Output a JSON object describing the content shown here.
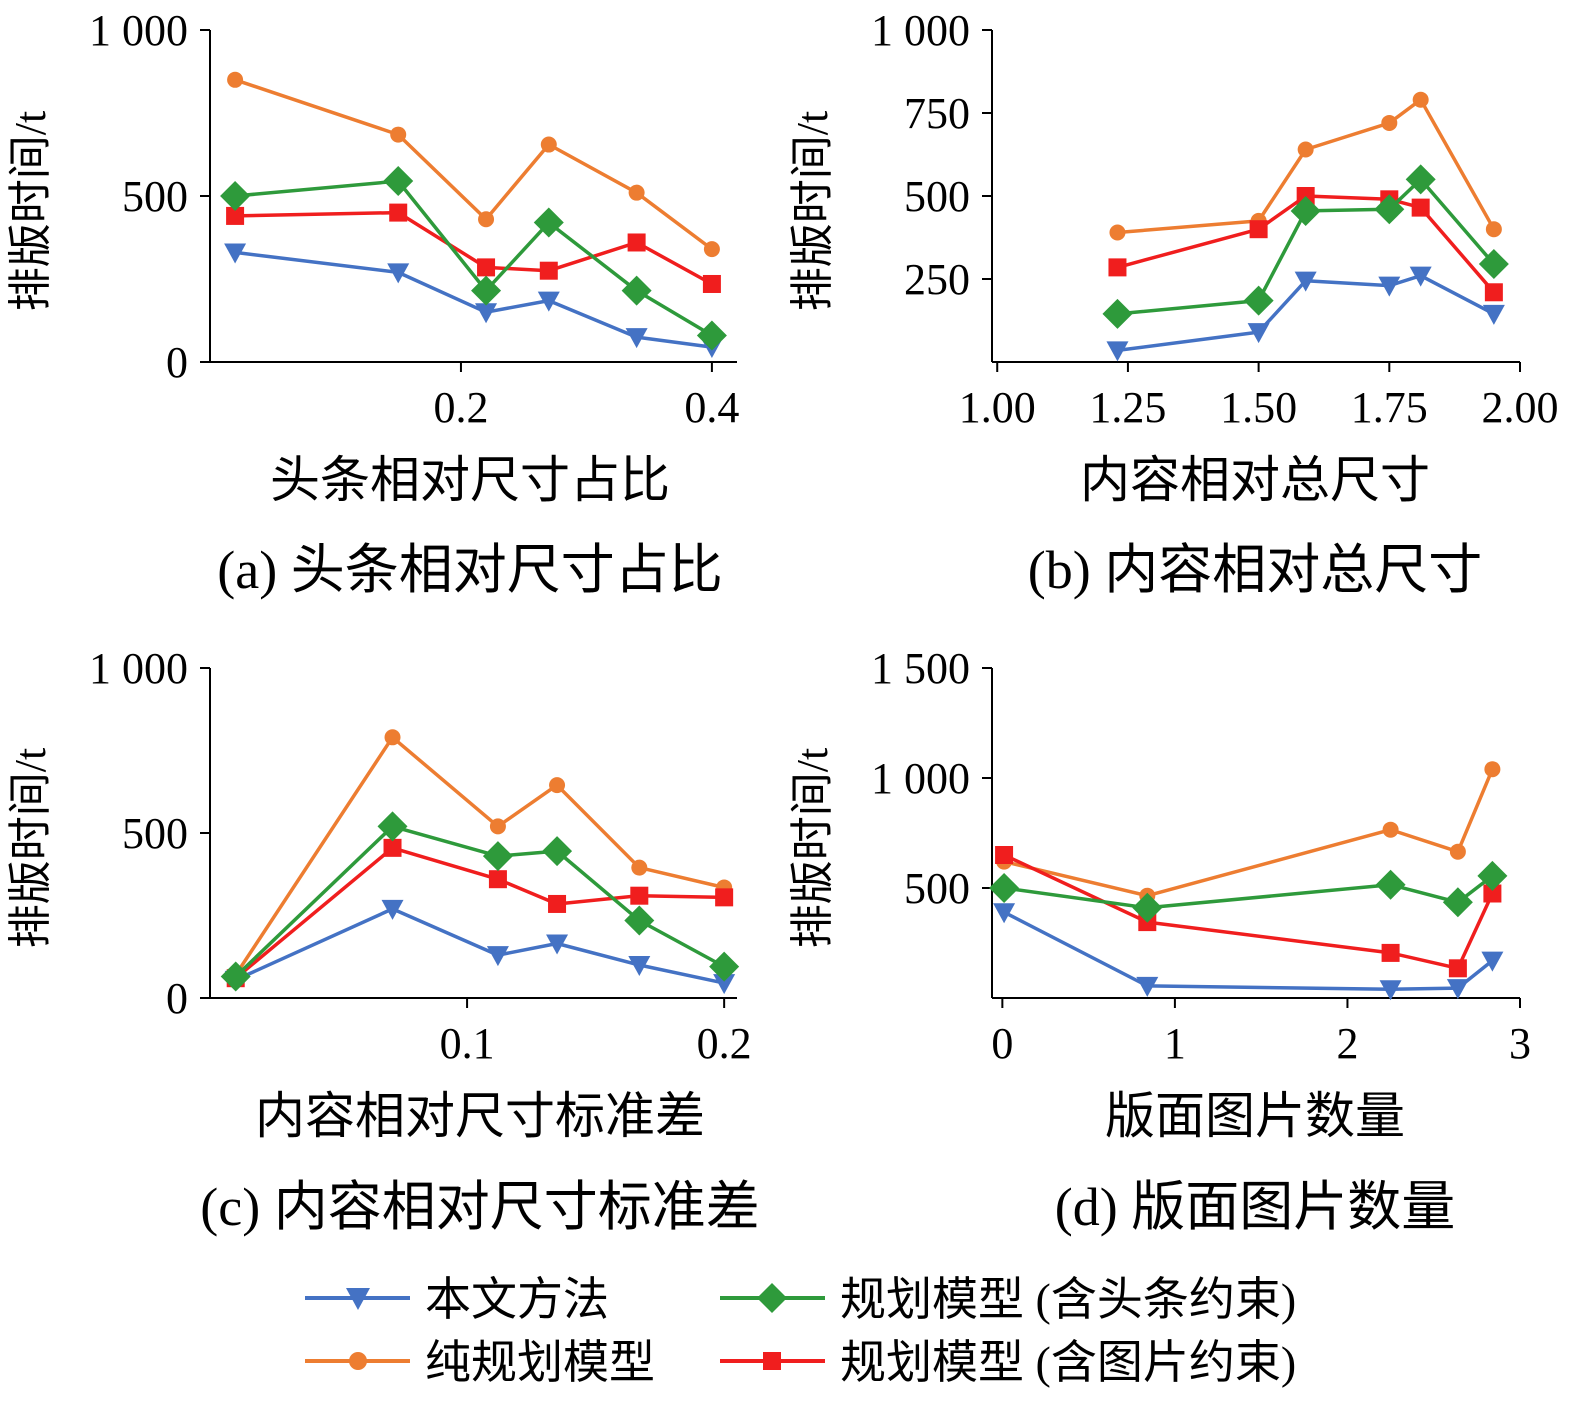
{
  "series_legend": [
    {
      "key": "ours",
      "name": "本文方法",
      "color": "#4472c4",
      "marker": "triangle-down-icon"
    },
    {
      "key": "pure",
      "name": "纯规划模型",
      "color": "#ed7d31",
      "marker": "circle-icon"
    },
    {
      "key": "head",
      "name": "规划模型 (含头条约束)",
      "color": "#2e9a3b",
      "marker": "diamond-icon"
    },
    {
      "key": "img",
      "name": "规划模型 (含图片约束)",
      "color": "#f01e1e",
      "marker": "square-icon"
    }
  ],
  "chart_data": [
    {
      "type": "line",
      "caption": "(a) 头条相对尺寸占比",
      "xlabel": "头条相对尺寸占比",
      "ylabel": "排版时间/t",
      "xlim": [
        0,
        0.42
      ],
      "ylim": [
        0,
        1000
      ],
      "xticks": [
        0.2,
        0.4
      ],
      "xtick_labels": [
        "0.2",
        "0.4"
      ],
      "yticks": [
        0,
        500,
        1000
      ],
      "ytick_labels": [
        "0",
        "500",
        "1 000"
      ],
      "x": [
        0.02,
        0.15,
        0.22,
        0.27,
        0.34,
        0.4
      ],
      "series": [
        {
          "key": "ours",
          "values": [
            330,
            270,
            150,
            185,
            75,
            45
          ]
        },
        {
          "key": "pure",
          "values": [
            850,
            685,
            430,
            655,
            510,
            340
          ]
        },
        {
          "key": "head",
          "values": [
            500,
            545,
            215,
            420,
            215,
            80
          ]
        },
        {
          "key": "img",
          "values": [
            440,
            450,
            285,
            275,
            360,
            235
          ]
        }
      ]
    },
    {
      "type": "line",
      "caption": "(b) 内容相对总尺寸",
      "xlabel": "内容相对总尺寸",
      "ylabel": "排版时间/t",
      "xlim": [
        0.99,
        2.0
      ],
      "ylim": [
        0,
        1000
      ],
      "xticks": [
        1.0,
        1.25,
        1.5,
        1.75,
        2.0
      ],
      "xtick_labels": [
        "1.00",
        "1.25",
        "1.50",
        "1.75",
        "2.00"
      ],
      "yticks": [
        250,
        500,
        750,
        1000
      ],
      "ytick_labels": [
        "250",
        "500",
        "750",
        "1 000"
      ],
      "x": [
        1.23,
        1.5,
        1.59,
        1.75,
        1.81,
        1.95
      ],
      "series": [
        {
          "key": "ours",
          "values": [
            35,
            90,
            245,
            230,
            260,
            145
          ]
        },
        {
          "key": "pure",
          "values": [
            390,
            425,
            640,
            720,
            790,
            400
          ]
        },
        {
          "key": "head",
          "values": [
            145,
            185,
            455,
            460,
            550,
            295
          ]
        },
        {
          "key": "img",
          "values": [
            285,
            400,
            500,
            490,
            465,
            210
          ]
        }
      ]
    },
    {
      "type": "line",
      "caption": "(c) 内容相对尺寸标准差",
      "xlabel": "内容相对尺寸标准差",
      "ylabel": "排版时间/t",
      "xlim": [
        0,
        0.205
      ],
      "ylim": [
        0,
        1000
      ],
      "xticks": [
        0.1,
        0.2
      ],
      "xtick_labels": [
        "0.1",
        "0.2"
      ],
      "yticks": [
        0,
        500,
        1000
      ],
      "ytick_labels": [
        "0",
        "500",
        "1 000"
      ],
      "x": [
        0.01,
        0.071,
        0.112,
        0.135,
        0.167,
        0.2
      ],
      "series": [
        {
          "key": "ours",
          "values": [
            55,
            270,
            130,
            165,
            100,
            45
          ]
        },
        {
          "key": "pure",
          "values": [
            70,
            790,
            520,
            645,
            395,
            335
          ]
        },
        {
          "key": "head",
          "values": [
            65,
            520,
            430,
            445,
            235,
            95
          ]
        },
        {
          "key": "img",
          "values": [
            60,
            455,
            360,
            285,
            310,
            305
          ]
        }
      ]
    },
    {
      "type": "line",
      "caption": "(d) 版面图片数量",
      "xlabel": "版面图片数量",
      "ylabel": "排版时间/t",
      "xlim": [
        -0.06,
        3
      ],
      "ylim": [
        0,
        1500
      ],
      "xticks": [
        0,
        1,
        2,
        3
      ],
      "xtick_labels": [
        "0",
        "1",
        "2",
        "3"
      ],
      "yticks": [
        500,
        1000,
        1500
      ],
      "ytick_labels": [
        "500",
        "1 000",
        "1 500"
      ],
      "x": [
        0.01,
        0.84,
        2.25,
        2.64,
        2.84
      ],
      "series": [
        {
          "key": "ours",
          "values": [
            390,
            55,
            40,
            45,
            170
          ]
        },
        {
          "key": "pure",
          "values": [
            620,
            465,
            765,
            665,
            1040
          ]
        },
        {
          "key": "head",
          "values": [
            500,
            410,
            515,
            435,
            555
          ]
        },
        {
          "key": "img",
          "values": [
            650,
            345,
            205,
            135,
            475
          ]
        }
      ]
    }
  ]
}
